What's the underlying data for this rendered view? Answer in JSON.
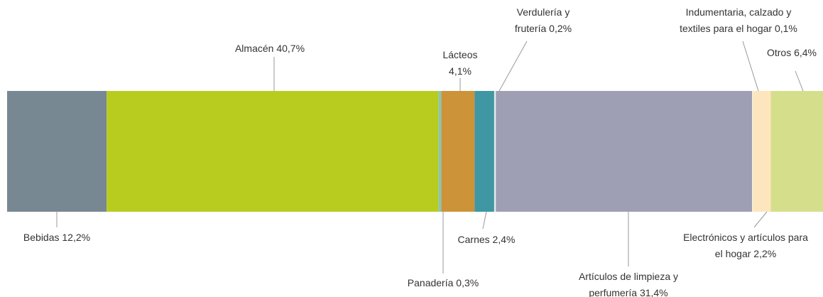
{
  "chart_data": {
    "type": "stacked_bar_100",
    "xlim": [
      0,
      100
    ],
    "series": [
      {
        "name": "Bebidas",
        "color": "#788893",
        "values": [
          12.2
        ],
        "value_labels": [
          "12,2%"
        ]
      },
      {
        "name": "Almacén",
        "color": "#b8cc1f",
        "values": [
          40.7
        ],
        "value_labels": [
          "40,7%"
        ]
      },
      {
        "name": "Panadería",
        "color": "#7fc8c8",
        "values": [
          0.3
        ],
        "value_labels": [
          "0,3%"
        ]
      },
      {
        "name": "Lácteos",
        "color": "#cc9339",
        "values": [
          4.1
        ],
        "value_labels": [
          "4,1%"
        ]
      },
      {
        "name": "Carnes",
        "color": "#3f97a3",
        "values": [
          2.4
        ],
        "value_labels": [
          "2,4%"
        ]
      },
      {
        "name": "Verdulería y frutería",
        "color": "#e9ecef",
        "values": [
          0.2
        ],
        "value_labels": [
          "0,2%"
        ]
      },
      {
        "name": "Artículos de limpieza y perfumería",
        "color": "#9e9eb4",
        "values": [
          31.4
        ],
        "value_labels": [
          "31,4%"
        ]
      },
      {
        "name": "Indumentaria, calzado y textiles para el hogar",
        "color": "#f2eee2",
        "values": [
          0.1
        ],
        "value_labels": [
          "0,1%"
        ]
      },
      {
        "name": "Electrónicos y artículos para el hogar",
        "color": "#fde6bd",
        "values": [
          2.2
        ],
        "value_labels": [
          "2,2%"
        ]
      },
      {
        "name": "Otros",
        "color": "#d5df8b",
        "values": [
          6.4
        ],
        "value_labels": [
          "6,4%"
        ]
      }
    ]
  }
}
